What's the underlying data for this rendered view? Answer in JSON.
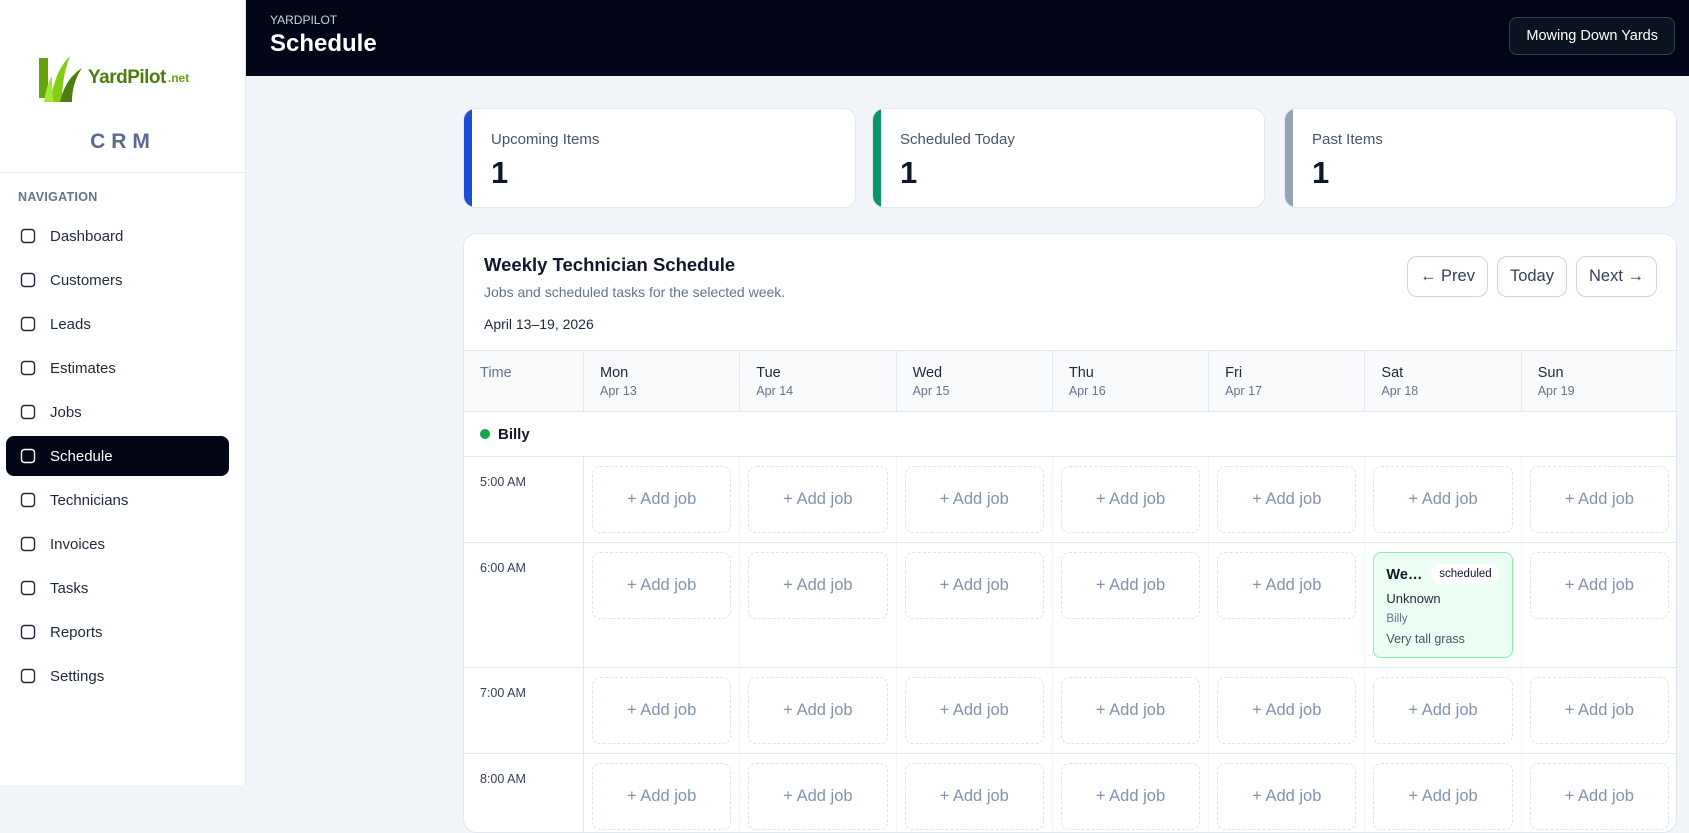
{
  "brand": {
    "name": "YardPilot",
    "suffix": ".net",
    "product": "CRM"
  },
  "navigation": {
    "label": "NAVIGATION",
    "active": "Schedule",
    "items": [
      "Dashboard",
      "Customers",
      "Leads",
      "Estimates",
      "Jobs",
      "Schedule",
      "Technicians",
      "Invoices",
      "Tasks",
      "Reports",
      "Settings"
    ]
  },
  "header": {
    "eyebrow": "YARDPILOT",
    "title": "Schedule",
    "account": "Mowing Down Yards"
  },
  "stats": [
    {
      "label": "Upcoming Items",
      "value": 1,
      "color": "#1d4ed8"
    },
    {
      "label": "Scheduled Today",
      "value": 1,
      "color": "#059669"
    },
    {
      "label": "Past Items",
      "value": 1,
      "color": "#94a3b8"
    }
  ],
  "schedule": {
    "title": "Weekly Technician Schedule",
    "subtitle": "Jobs and scheduled tasks for the selected week.",
    "range": "April 13–19, 2026",
    "buttons": [
      "← Prev",
      "Today",
      "Next →"
    ],
    "time_header": "Time",
    "days": [
      {
        "name": "Mon",
        "date": "Apr 13"
      },
      {
        "name": "Tue",
        "date": "Apr 14"
      },
      {
        "name": "Wed",
        "date": "Apr 15"
      },
      {
        "name": "Thu",
        "date": "Apr 16"
      },
      {
        "name": "Fri",
        "date": "Apr 17"
      },
      {
        "name": "Sat",
        "date": "Apr 18"
      },
      {
        "name": "Sun",
        "date": "Apr 19"
      }
    ],
    "technician": "Billy",
    "add_label": "+ Add job",
    "slots": [
      {
        "time": "5:00 AM",
        "jobs": {}
      },
      {
        "time": "6:00 AM",
        "jobs": {
          "Sat": {
            "title": "We…",
            "status": "scheduled",
            "customer": "Unknown",
            "technician": "Billy",
            "note": "Very tall grass"
          }
        }
      },
      {
        "time": "7:00 AM",
        "jobs": {}
      },
      {
        "time": "8:00 AM",
        "jobs": {}
      }
    ]
  }
}
